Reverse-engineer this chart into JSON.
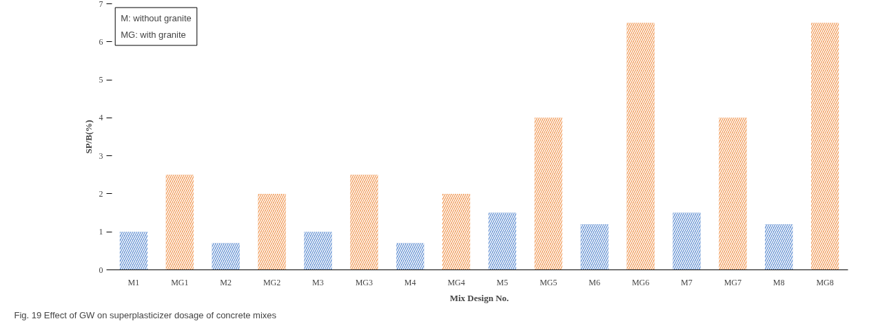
{
  "chart_data": {
    "type": "bar",
    "xlabel": "Mix Design No.",
    "ylabel": "SP/B(%)",
    "categories": [
      "M1",
      "MG1",
      "M2",
      "MG2",
      "M3",
      "MG3",
      "M4",
      "MG4",
      "M5",
      "MG5",
      "M6",
      "MG6",
      "M7",
      "MG7",
      "M8",
      "MG8"
    ],
    "values": [
      1,
      2.5,
      0.7,
      2,
      1,
      2.5,
      0.7,
      2,
      1.5,
      4,
      1.2,
      6.5,
      1.5,
      4,
      1.2,
      6.5
    ],
    "colors": [
      "#5b8bd0",
      "#f0954f",
      "#5b8bd0",
      "#f0954f",
      "#5b8bd0",
      "#f0954f",
      "#5b8bd0",
      "#f0954f",
      "#5b8bd0",
      "#f0954f",
      "#5b8bd0",
      "#f0954f",
      "#5b8bd0",
      "#f0954f",
      "#5b8bd0",
      "#f0954f"
    ],
    "ylim": [
      0,
      7
    ],
    "yticks": [
      0,
      1,
      2,
      3,
      4,
      5,
      6,
      7
    ],
    "grid": false,
    "annotations": [
      "M: without granite",
      "MG: with granite",
      "Fig. 19  Effect of GW on superplasticizer dosage of concrete mixes"
    ]
  }
}
